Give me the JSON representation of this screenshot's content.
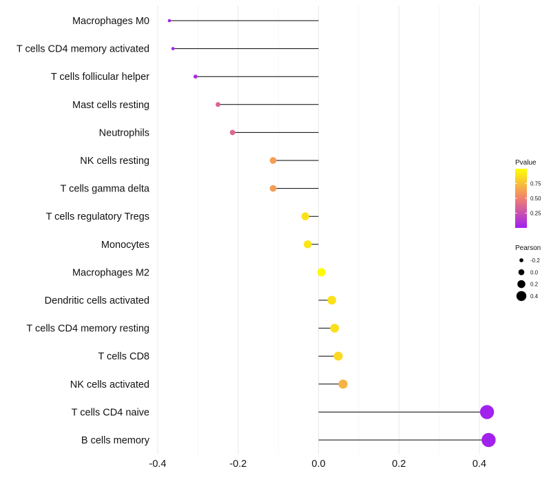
{
  "chart_data": {
    "type": "lollipop",
    "title": "",
    "xlabel": "",
    "ylabel": "",
    "xlim": [
      -0.4,
      0.4
    ],
    "xticks": [
      -0.4,
      -0.2,
      0.0,
      0.2,
      0.4
    ],
    "xtick_labels": [
      "-0.4",
      "-0.2",
      "0.0",
      "0.2",
      "0.4"
    ],
    "baseline": 0.0,
    "grid": true,
    "categories": [
      "Macrophages M0",
      "T cells CD4 memory activated",
      "T cells follicular helper",
      "Mast cells resting",
      "Neutrophils",
      "NK cells resting",
      "T cells gamma delta",
      "T cells regulatory  Tregs ",
      "Monocytes",
      "Macrophages M2",
      "Dendritic cells activated",
      "T cells CD4 memory resting",
      "T cells CD8",
      "NK cells activated",
      "T cells CD4 naive",
      "B cells memory"
    ],
    "pearson": [
      -0.371,
      -0.362,
      -0.306,
      -0.25,
      -0.214,
      -0.113,
      -0.113,
      -0.033,
      -0.027,
      0.007,
      0.033,
      0.04,
      0.049,
      0.061,
      0.419,
      0.423
    ],
    "pvalue": [
      0.01,
      0.02,
      0.06,
      0.35,
      0.38,
      0.62,
      0.62,
      0.88,
      0.9,
      0.99,
      0.88,
      0.87,
      0.85,
      0.7,
      0.01,
      0.01
    ],
    "legends": {
      "color": {
        "title": "Pvalue",
        "range": [
          0.0,
          1.0
        ],
        "ticks": [
          0.25,
          0.5,
          0.75
        ],
        "tick_labels": [
          "0.25",
          "0.50",
          "0.75"
        ],
        "low_color": "#a020f0",
        "mid_color": "#f08070",
        "high_color": "#ffff00"
      },
      "size": {
        "title": "Pearson",
        "values": [
          -0.2,
          0.0,
          0.2,
          0.4
        ],
        "labels": [
          "-0.2",
          "0.0",
          "0.2",
          "0.4"
        ]
      }
    }
  }
}
